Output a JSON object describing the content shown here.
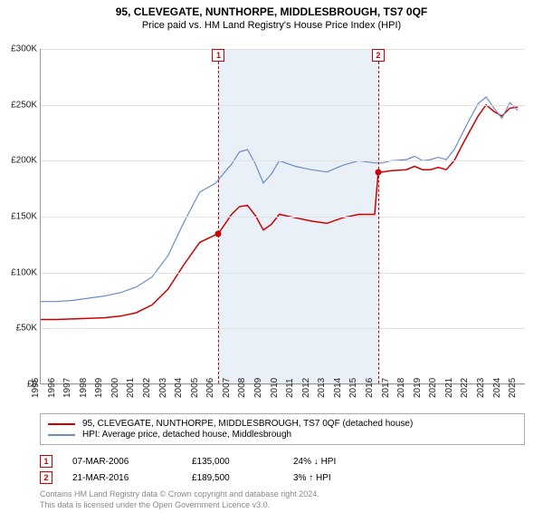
{
  "title": "95, CLEVEGATE, NUNTHORPE, MIDDLESBROUGH, TS7 0QF",
  "subtitle": "Price paid vs. HM Land Registry's House Price Index (HPI)",
  "chart": {
    "type": "line",
    "background_color": "#ffffff",
    "grid_color": "#e2e2e2",
    "axis_color": "#999999",
    "label_fontsize": 10,
    "x_range": [
      1995,
      2025.5
    ],
    "y_range": [
      0,
      300000
    ],
    "y_ticks": [
      0,
      50000,
      100000,
      150000,
      200000,
      250000,
      300000
    ],
    "y_tick_labels": [
      "£0",
      "£50K",
      "£100K",
      "£150K",
      "£200K",
      "£250K",
      "£300K"
    ],
    "x_ticks": [
      1995,
      1996,
      1997,
      1998,
      1999,
      2000,
      2001,
      2002,
      2003,
      2004,
      2005,
      2006,
      2007,
      2008,
      2009,
      2010,
      2011,
      2012,
      2013,
      2014,
      2015,
      2016,
      2017,
      2018,
      2019,
      2020,
      2021,
      2022,
      2023,
      2024,
      2025
    ],
    "shaded_region": {
      "start": 2006.18,
      "end": 2016.22,
      "color": "#eaf0f8"
    },
    "series": [
      {
        "name": "property",
        "label": "95, CLEVEGATE, NUNTHORPE, MIDDLESBROUGH, TS7 0QF (detached house)",
        "color": "#cc0000",
        "line_width": 1.5,
        "points": [
          [
            1995,
            58000
          ],
          [
            1996,
            58000
          ],
          [
            1997,
            58500
          ],
          [
            1998,
            59000
          ],
          [
            1999,
            59500
          ],
          [
            2000,
            61000
          ],
          [
            2001,
            64000
          ],
          [
            2002,
            71000
          ],
          [
            2003,
            85000
          ],
          [
            2004,
            107000
          ],
          [
            2005,
            127000
          ],
          [
            2006.18,
            135000
          ],
          [
            2007,
            152000
          ],
          [
            2007.5,
            159000
          ],
          [
            2008,
            160000
          ],
          [
            2008.5,
            151000
          ],
          [
            2009,
            138000
          ],
          [
            2009.5,
            143000
          ],
          [
            2010,
            152000
          ],
          [
            2011,
            149000
          ],
          [
            2012,
            146000
          ],
          [
            2013,
            144000
          ],
          [
            2014,
            149000
          ],
          [
            2015,
            152000
          ],
          [
            2016,
            152000
          ],
          [
            2016.22,
            189500
          ],
          [
            2016.5,
            190000
          ],
          [
            2017,
            191000
          ],
          [
            2018,
            192000
          ],
          [
            2018.5,
            195000
          ],
          [
            2019,
            192000
          ],
          [
            2019.5,
            192000
          ],
          [
            2020,
            194000
          ],
          [
            2020.5,
            192000
          ],
          [
            2021,
            200000
          ],
          [
            2021.5,
            214000
          ],
          [
            2022,
            227000
          ],
          [
            2022.5,
            240000
          ],
          [
            2023,
            250000
          ],
          [
            2023.5,
            244000
          ],
          [
            2024,
            240000
          ],
          [
            2024.5,
            247000
          ],
          [
            2025,
            248000
          ]
        ]
      },
      {
        "name": "hpi",
        "label": "HPI: Average price, detached house, Middlesbrough",
        "color": "#6a8cc9",
        "line_width": 1.2,
        "points": [
          [
            1995,
            74000
          ],
          [
            1996,
            74000
          ],
          [
            1997,
            75000
          ],
          [
            1998,
            77000
          ],
          [
            1999,
            79000
          ],
          [
            2000,
            82000
          ],
          [
            2001,
            87000
          ],
          [
            2002,
            96000
          ],
          [
            2003,
            115000
          ],
          [
            2004,
            145000
          ],
          [
            2005,
            172000
          ],
          [
            2006,
            180000
          ],
          [
            2007,
            197000
          ],
          [
            2007.5,
            208000
          ],
          [
            2008,
            210000
          ],
          [
            2008.5,
            197000
          ],
          [
            2009,
            180000
          ],
          [
            2009.5,
            188000
          ],
          [
            2010,
            200000
          ],
          [
            2011,
            195000
          ],
          [
            2012,
            192000
          ],
          [
            2013,
            190000
          ],
          [
            2014,
            196000
          ],
          [
            2015,
            200000
          ],
          [
            2016,
            198000
          ],
          [
            2016.5,
            198000
          ],
          [
            2017,
            200000
          ],
          [
            2018,
            201000
          ],
          [
            2018.5,
            204000
          ],
          [
            2019,
            200000
          ],
          [
            2019.5,
            201000
          ],
          [
            2020,
            203000
          ],
          [
            2020.5,
            201000
          ],
          [
            2021,
            210000
          ],
          [
            2021.5,
            224000
          ],
          [
            2022,
            238000
          ],
          [
            2022.5,
            251000
          ],
          [
            2023,
            257000
          ],
          [
            2023.5,
            247000
          ],
          [
            2024,
            238000
          ],
          [
            2024.5,
            252000
          ],
          [
            2025,
            245000
          ]
        ]
      }
    ],
    "sale_markers": [
      {
        "n": "1",
        "x": 2006.18,
        "y": 135000
      },
      {
        "n": "2",
        "x": 2016.22,
        "y": 189500
      }
    ]
  },
  "legend": {
    "items": [
      {
        "color": "#cc0000",
        "text": "95, CLEVEGATE, NUNTHORPE, MIDDLESBROUGH, TS7 0QF (detached house)"
      },
      {
        "color": "#6a8cc9",
        "text": "HPI: Average price, detached house, Middlesbrough"
      }
    ]
  },
  "sales": [
    {
      "n": "1",
      "date": "07-MAR-2006",
      "price": "£135,000",
      "diff": "24% ↓ HPI"
    },
    {
      "n": "2",
      "date": "21-MAR-2016",
      "price": "£189,500",
      "diff": "3% ↑ HPI"
    }
  ],
  "footnote_line1": "Contains HM Land Registry data © Crown copyright and database right 2024.",
  "footnote_line2": "This data is licensed under the Open Government Licence v3.0."
}
